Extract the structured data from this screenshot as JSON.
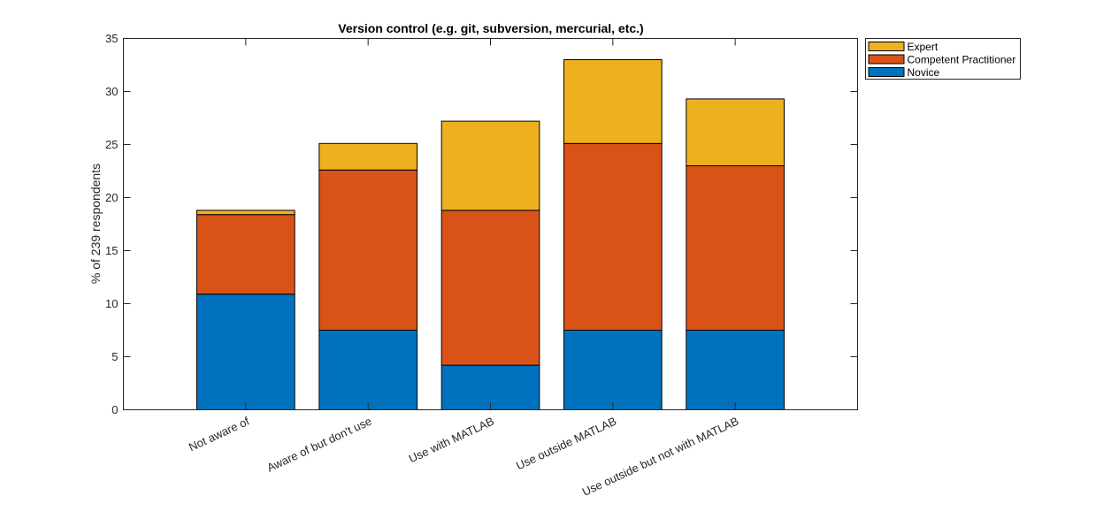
{
  "chart_data": {
    "type": "bar",
    "stacked": true,
    "title": "Version control (e.g. git, subversion, mercurial, etc.)",
    "xlabel": "",
    "ylabel": "% of 239 respondents",
    "ylim": [
      0,
      35
    ],
    "yticks": [
      0,
      5,
      10,
      15,
      20,
      25,
      30,
      35
    ],
    "categories": [
      "Not aware of",
      "Aware of but don't use",
      "Use with MATLAB",
      "Use outside MATLAB",
      "Use outside but not with MATLAB"
    ],
    "series": [
      {
        "name": "Novice",
        "color": "#0072BD",
        "values": [
          10.9,
          7.5,
          4.2,
          7.5,
          7.5
        ]
      },
      {
        "name": "Competent Practitioner",
        "color": "#D95319",
        "values": [
          7.5,
          15.1,
          14.6,
          17.6,
          15.5
        ]
      },
      {
        "name": "Expert",
        "color": "#EDB120",
        "values": [
          0.4,
          2.5,
          8.4,
          7.9,
          6.3
        ]
      }
    ],
    "legend_order": [
      "Expert",
      "Competent Practitioner",
      "Novice"
    ],
    "legend_position": "outside-top-right",
    "grid": false
  }
}
